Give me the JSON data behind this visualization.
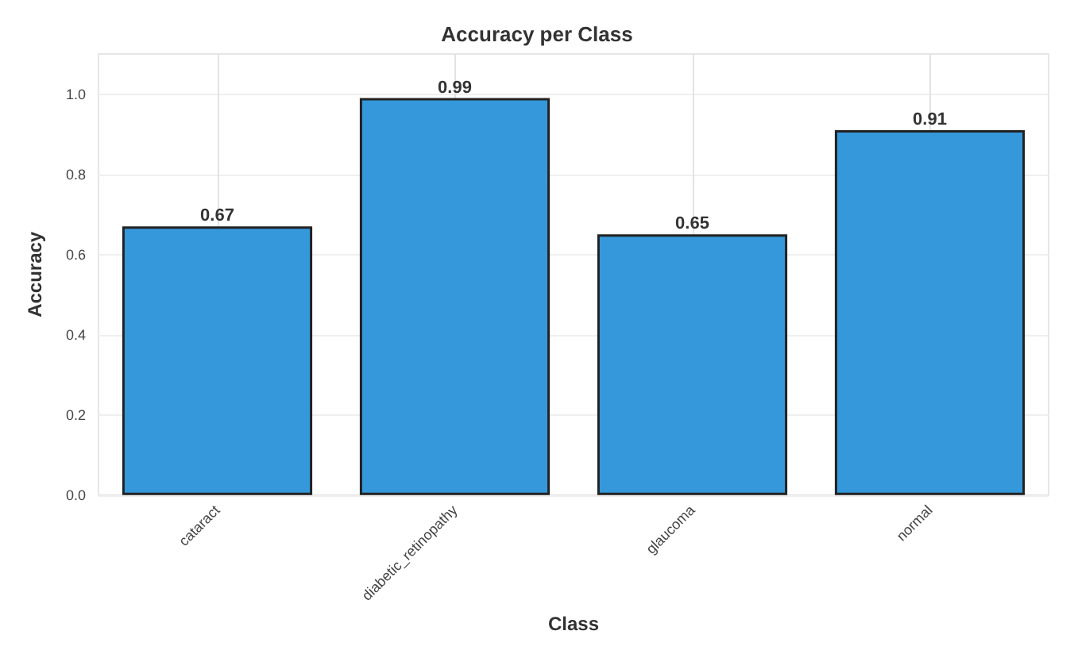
{
  "chart_data": {
    "type": "bar",
    "title": "Accuracy per Class",
    "xlabel": "Class",
    "ylabel": "Accuracy",
    "categories": [
      "cataract",
      "diabetic_retinopathy",
      "glaucoma",
      "normal"
    ],
    "values": [
      0.67,
      0.99,
      0.65,
      0.91
    ],
    "color": "#3498db",
    "ylim": [
      0,
      1.1
    ],
    "yticks": [
      {
        "value": 0,
        "label": "0.0"
      },
      {
        "value": 0.2,
        "label": "0.2"
      },
      {
        "value": 0.4,
        "label": "0.4"
      },
      {
        "value": 0.6,
        "label": "0.6"
      },
      {
        "value": 0.8,
        "label": "0.8"
      },
      {
        "value": 1,
        "label": "1.0"
      }
    ],
    "grid": true,
    "data_labels": true
  }
}
